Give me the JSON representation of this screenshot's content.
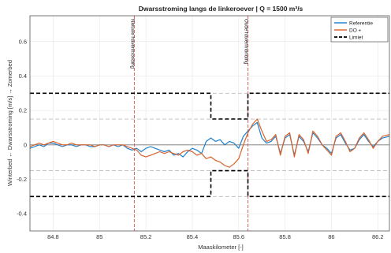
{
  "chart_data": {
    "type": "line",
    "title": "Dwarsstroming langs de linkeroever | Q = 1500 m³/s",
    "xlabel": "Maaskilometer [-]",
    "ylabel": "Winterbed ← Dwarsstroming [m/s] → Zomerbed",
    "xlim": [
      84.7,
      86.25
    ],
    "ylim": [
      -0.5,
      0.75
    ],
    "xticks": [
      "84.8",
      "85",
      "85.2",
      "85.4",
      "85.6",
      "85.8",
      "86",
      "86.2"
    ],
    "yticks": [
      "-0.4",
      "-0.2",
      "0",
      "0.2",
      "0.4",
      "0.6"
    ],
    "grid": true,
    "legend_position": "top-right",
    "legend": [
      "Referentie",
      "DO +",
      "Limiet"
    ],
    "vertical_markers": [
      {
        "x": 85.15,
        "label": "Nieuwe havenmonding"
      },
      {
        "x": 85.64,
        "label": "Oude havenmonding"
      }
    ],
    "series": [
      {
        "name": "Referentie",
        "color": "#1f7fc9",
        "x": [
          84.7,
          84.72,
          84.74,
          84.76,
          84.78,
          84.8,
          84.82,
          84.84,
          84.86,
          84.88,
          84.9,
          84.92,
          84.94,
          84.96,
          84.98,
          85.0,
          85.02,
          85.04,
          85.06,
          85.08,
          85.1,
          85.12,
          85.14,
          85.16,
          85.18,
          85.2,
          85.22,
          85.24,
          85.26,
          85.28,
          85.3,
          85.32,
          85.34,
          85.36,
          85.38,
          85.4,
          85.42,
          85.44,
          85.46,
          85.48,
          85.5,
          85.52,
          85.54,
          85.56,
          85.58,
          85.6,
          85.62,
          85.64,
          85.66,
          85.68,
          85.7,
          85.72,
          85.74,
          85.76,
          85.78,
          85.8,
          85.82,
          85.84,
          85.86,
          85.88,
          85.9,
          85.92,
          85.94,
          85.96,
          85.98,
          86.0,
          86.02,
          86.04,
          86.06,
          86.08,
          86.1,
          86.12,
          86.14,
          86.16,
          86.18,
          86.2,
          86.22,
          86.25
        ],
        "y": [
          -0.02,
          -0.01,
          0.0,
          -0.01,
          0.01,
          0.01,
          0.0,
          -0.01,
          0.0,
          0.0,
          -0.01,
          0.0,
          0.0,
          -0.01,
          -0.01,
          0.0,
          0.0,
          -0.01,
          0.0,
          -0.01,
          0.0,
          -0.02,
          -0.03,
          -0.02,
          -0.04,
          -0.02,
          -0.01,
          -0.02,
          -0.03,
          -0.04,
          -0.03,
          -0.06,
          -0.05,
          -0.07,
          -0.04,
          -0.02,
          -0.03,
          -0.05,
          0.02,
          0.04,
          0.02,
          0.03,
          0.0,
          0.02,
          0.01,
          -0.02,
          0.05,
          0.08,
          0.11,
          0.13,
          0.04,
          0.01,
          0.02,
          0.05,
          -0.05,
          0.04,
          0.06,
          -0.06,
          0.05,
          0.02,
          -0.04,
          0.07,
          0.04,
          0.0,
          -0.02,
          -0.05,
          0.04,
          0.06,
          0.01,
          -0.03,
          -0.02,
          0.03,
          0.06,
          0.02,
          -0.01,
          0.02,
          0.04,
          0.05
        ]
      },
      {
        "name": "DO +",
        "color": "#d9622b",
        "x": [
          84.7,
          84.72,
          84.74,
          84.76,
          84.78,
          84.8,
          84.82,
          84.84,
          84.86,
          84.88,
          84.9,
          84.92,
          84.94,
          84.96,
          84.98,
          85.0,
          85.02,
          85.04,
          85.06,
          85.08,
          85.1,
          85.12,
          85.14,
          85.16,
          85.18,
          85.2,
          85.22,
          85.24,
          85.26,
          85.28,
          85.3,
          85.32,
          85.34,
          85.36,
          85.38,
          85.4,
          85.42,
          85.44,
          85.46,
          85.48,
          85.5,
          85.52,
          85.54,
          85.56,
          85.58,
          85.6,
          85.62,
          85.64,
          85.66,
          85.68,
          85.7,
          85.72,
          85.74,
          85.76,
          85.78,
          85.8,
          85.82,
          85.84,
          85.86,
          85.88,
          85.9,
          85.92,
          85.94,
          85.96,
          85.98,
          86.0,
          86.02,
          86.04,
          86.06,
          86.08,
          86.1,
          86.12,
          86.14,
          86.16,
          86.18,
          86.2,
          86.22,
          86.25
        ],
        "y": [
          -0.01,
          0.0,
          0.01,
          0.0,
          0.01,
          0.02,
          0.01,
          0.0,
          0.0,
          0.01,
          0.0,
          0.0,
          0.0,
          0.0,
          -0.01,
          0.0,
          0.0,
          -0.01,
          0.0,
          0.0,
          0.0,
          -0.01,
          -0.02,
          -0.03,
          -0.06,
          -0.07,
          -0.06,
          -0.05,
          -0.04,
          -0.05,
          -0.04,
          -0.05,
          -0.06,
          -0.04,
          -0.03,
          -0.04,
          -0.06,
          -0.05,
          -0.08,
          -0.07,
          -0.09,
          -0.1,
          -0.12,
          -0.13,
          -0.11,
          -0.08,
          0.0,
          0.07,
          0.12,
          0.15,
          0.08,
          0.02,
          0.03,
          0.06,
          -0.06,
          0.05,
          0.07,
          -0.07,
          0.06,
          0.03,
          -0.05,
          0.08,
          0.05,
          0.0,
          -0.03,
          -0.06,
          0.05,
          0.07,
          0.02,
          -0.04,
          -0.02,
          0.04,
          0.07,
          0.03,
          -0.02,
          0.02,
          0.05,
          0.06
        ]
      },
      {
        "name": "Limiet",
        "color": "#000000",
        "style": "dashed",
        "upper": {
          "x": [
            84.7,
            85.48,
            85.48,
            85.64,
            85.64,
            86.25
          ],
          "y": [
            0.3,
            0.3,
            0.15,
            0.15,
            0.3,
            0.3
          ]
        },
        "lower": {
          "x": [
            84.7,
            85.48,
            85.48,
            85.64,
            85.64,
            86.25
          ],
          "y": [
            -0.3,
            -0.3,
            -0.15,
            -0.15,
            -0.3,
            -0.3
          ]
        }
      }
    ],
    "reference_lines": {
      "color": "#bbbbbb",
      "style": "dashed",
      "y": [
        0.3,
        0.15,
        -0.15,
        -0.3
      ]
    }
  }
}
